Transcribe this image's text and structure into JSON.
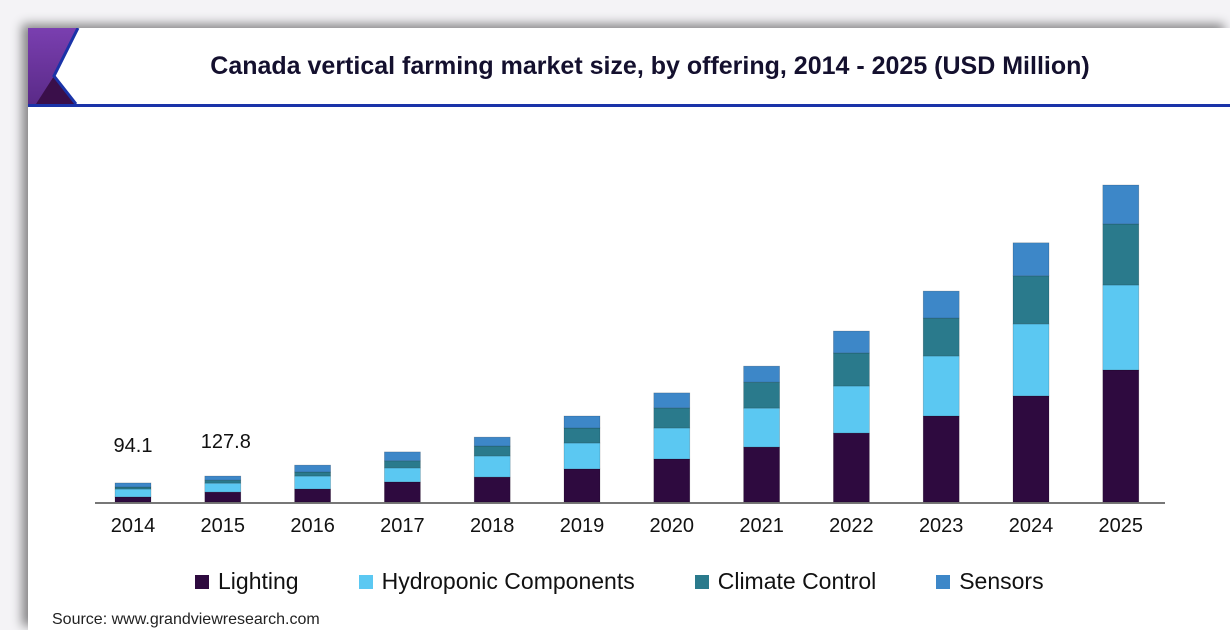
{
  "chart_data": {
    "type": "bar",
    "stacked": true,
    "title": "Canada vertical farming market size, by offering, 2014 - 2025 (USD Million)",
    "categories": [
      "2014",
      "2015",
      "2016",
      "2017",
      "2018",
      "2019",
      "2020",
      "2021",
      "2022",
      "2023",
      "2024",
      "2025"
    ],
    "series": [
      {
        "name": "Lighting",
        "color": "#2e0a3f",
        "values": [
          25,
          49,
          64,
          99,
          123,
          163,
          212,
          271,
          340,
          424,
          523,
          651
        ]
      },
      {
        "name": "Hydroponic Components",
        "color": "#5bc8f2",
        "values": [
          39,
          44,
          64,
          69,
          104,
          128,
          153,
          192,
          232,
          296,
          355,
          419
        ]
      },
      {
        "name": "Climate Control",
        "color": "#2a7a8c",
        "values": [
          10,
          15,
          20,
          35,
          49,
          74,
          99,
          128,
          163,
          187,
          237,
          301
        ]
      },
      {
        "name": "Sensors",
        "color": "#3d87c8",
        "values": [
          20,
          20,
          34,
          44,
          44,
          59,
          74,
          79,
          108,
          133,
          163,
          192
        ]
      }
    ],
    "data_labels": [
      {
        "category": "2014",
        "text": "94.1"
      },
      {
        "category": "2015",
        "text": "127.8"
      }
    ],
    "ylim": [
      0,
      1600
    ],
    "grid": false,
    "legend": "bottom"
  },
  "source": "Source: www.grandviewresearch.com"
}
